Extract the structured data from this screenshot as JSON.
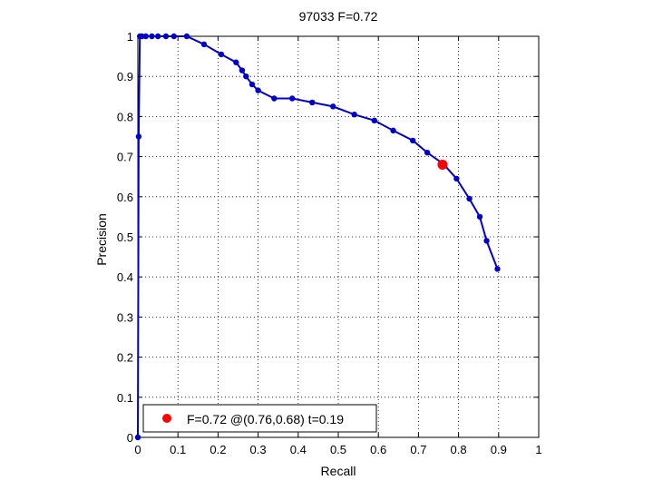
{
  "chart_data": {
    "type": "line",
    "title": "97033 F=0.72",
    "xlabel": "Recall",
    "ylabel": "Precision",
    "xlim": [
      0,
      1
    ],
    "ylim": [
      0,
      1
    ],
    "grid": true,
    "xticks": [
      0,
      0.1,
      0.2,
      0.3,
      0.4,
      0.5,
      0.6,
      0.7,
      0.8,
      0.9,
      1
    ],
    "yticks": [
      0,
      0.1,
      0.2,
      0.3,
      0.4,
      0.5,
      0.6,
      0.7,
      0.8,
      0.9,
      1
    ],
    "xtick_labels": [
      "0",
      "0.1",
      "0.2",
      "0.3",
      "0.4",
      "0.5",
      "0.6",
      "0.7",
      "0.8",
      "0.9",
      "1"
    ],
    "ytick_labels": [
      "0",
      "0.1",
      "0.2",
      "0.3",
      "0.4",
      "0.5",
      "0.6",
      "0.7",
      "0.8",
      "0.9",
      "1"
    ],
    "series": [
      {
        "color": "#0000cc",
        "marker": "circle",
        "x": [
          0.0,
          0.002,
          0.005,
          0.01,
          0.02,
          0.035,
          0.05,
          0.07,
          0.09,
          0.122,
          0.165,
          0.208,
          0.245,
          0.26,
          0.27,
          0.285,
          0.3,
          0.34,
          0.385,
          0.435,
          0.487,
          0.54,
          0.59,
          0.637,
          0.686,
          0.722,
          0.762,
          0.795,
          0.827,
          0.853,
          0.87,
          0.897
        ],
        "y": [
          0.0,
          0.75,
          1.0,
          1.0,
          1.0,
          1.0,
          1.0,
          1.0,
          1.0,
          1.0,
          0.98,
          0.955,
          0.935,
          0.915,
          0.9,
          0.88,
          0.865,
          0.845,
          0.845,
          0.835,
          0.825,
          0.805,
          0.79,
          0.765,
          0.74,
          0.71,
          0.682,
          0.645,
          0.595,
          0.55,
          0.49,
          0.42
        ]
      }
    ],
    "highlight_point": {
      "x": 0.76,
      "y": 0.68,
      "color": "#ff0000"
    },
    "legend": {
      "position": "bottom-left",
      "label": "F=0.72 @(0.76,0.68) t=0.19"
    }
  }
}
